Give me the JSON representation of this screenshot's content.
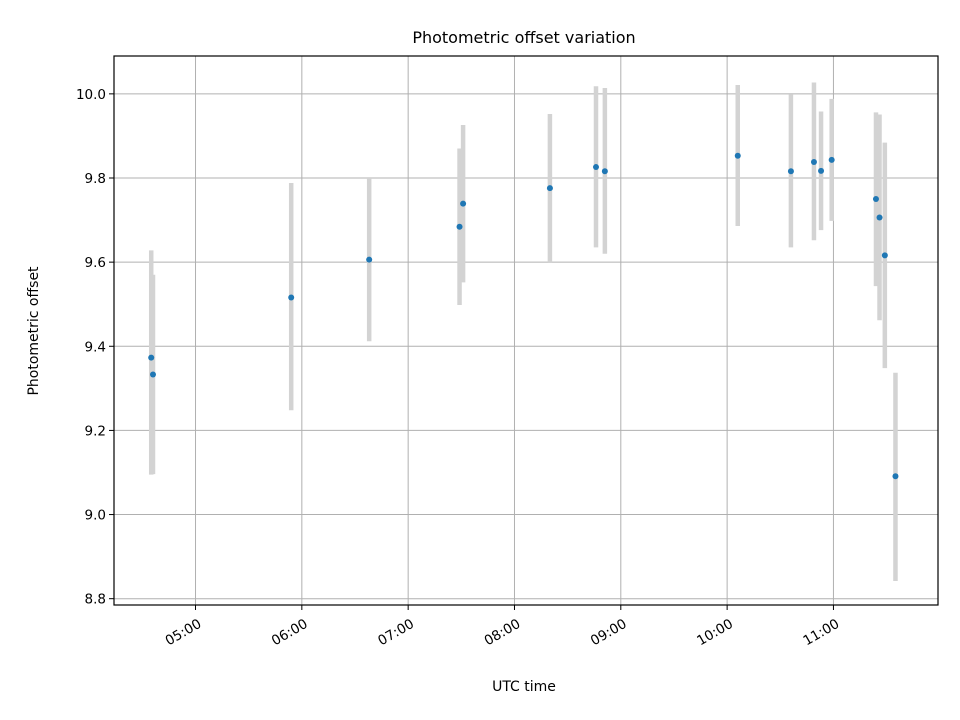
{
  "chart_data": {
    "type": "scatter",
    "title": "Photometric offset variation",
    "xlabel": "UTC time",
    "ylabel": "Photometric offset",
    "x_ticks": [
      "05:00",
      "06:00",
      "07:00",
      "08:00",
      "09:00",
      "10:00",
      "11:00"
    ],
    "y_ticks": [
      "8.8",
      "9.0",
      "9.2",
      "9.4",
      "9.6",
      "9.8",
      "10.0"
    ],
    "xlim": [
      "04:14",
      "11:59"
    ],
    "ylim": [
      8.785,
      10.09
    ],
    "grid": true,
    "colors": {
      "marker": "#1f77b4",
      "errorbar": "#d3d3d3"
    },
    "series": [
      {
        "points": [
          {
            "x": "04:35",
            "y": 9.373,
            "err_low": 9.095,
            "err_high": 9.628
          },
          {
            "x": "04:36",
            "y": 9.333,
            "err_low": 9.096,
            "err_high": 9.57
          },
          {
            "x": "05:54",
            "y": 9.516,
            "err_low": 9.248,
            "err_high": 9.788
          },
          {
            "x": "06:38",
            "y": 9.606,
            "err_low": 9.412,
            "err_high": 9.8
          },
          {
            "x": "07:29",
            "y": 9.684,
            "err_low": 9.498,
            "err_high": 9.87
          },
          {
            "x": "07:31",
            "y": 9.739,
            "err_low": 9.552,
            "err_high": 9.926
          },
          {
            "x": "08:20",
            "y": 9.776,
            "err_low": 9.6,
            "err_high": 9.952
          },
          {
            "x": "08:46",
            "y": 9.826,
            "err_low": 9.635,
            "err_high": 10.018
          },
          {
            "x": "08:51",
            "y": 9.816,
            "err_low": 9.62,
            "err_high": 10.014
          },
          {
            "x": "10:06",
            "y": 9.853,
            "err_low": 9.686,
            "err_high": 10.021
          },
          {
            "x": "10:36",
            "y": 9.816,
            "err_low": 9.635,
            "err_high": 9.999
          },
          {
            "x": "10:49",
            "y": 9.838,
            "err_low": 9.652,
            "err_high": 10.027
          },
          {
            "x": "10:53",
            "y": 9.817,
            "err_low": 9.676,
            "err_high": 9.958
          },
          {
            "x": "10:59",
            "y": 9.843,
            "err_low": 9.698,
            "err_high": 9.988
          },
          {
            "x": "11:24",
            "y": 9.75,
            "err_low": 9.543,
            "err_high": 9.956
          },
          {
            "x": "11:26",
            "y": 9.706,
            "err_low": 9.462,
            "err_high": 9.951
          },
          {
            "x": "11:29",
            "y": 9.616,
            "err_low": 9.348,
            "err_high": 9.884
          },
          {
            "x": "11:35",
            "y": 9.091,
            "err_low": 8.842,
            "err_high": 9.337
          }
        ]
      }
    ]
  }
}
